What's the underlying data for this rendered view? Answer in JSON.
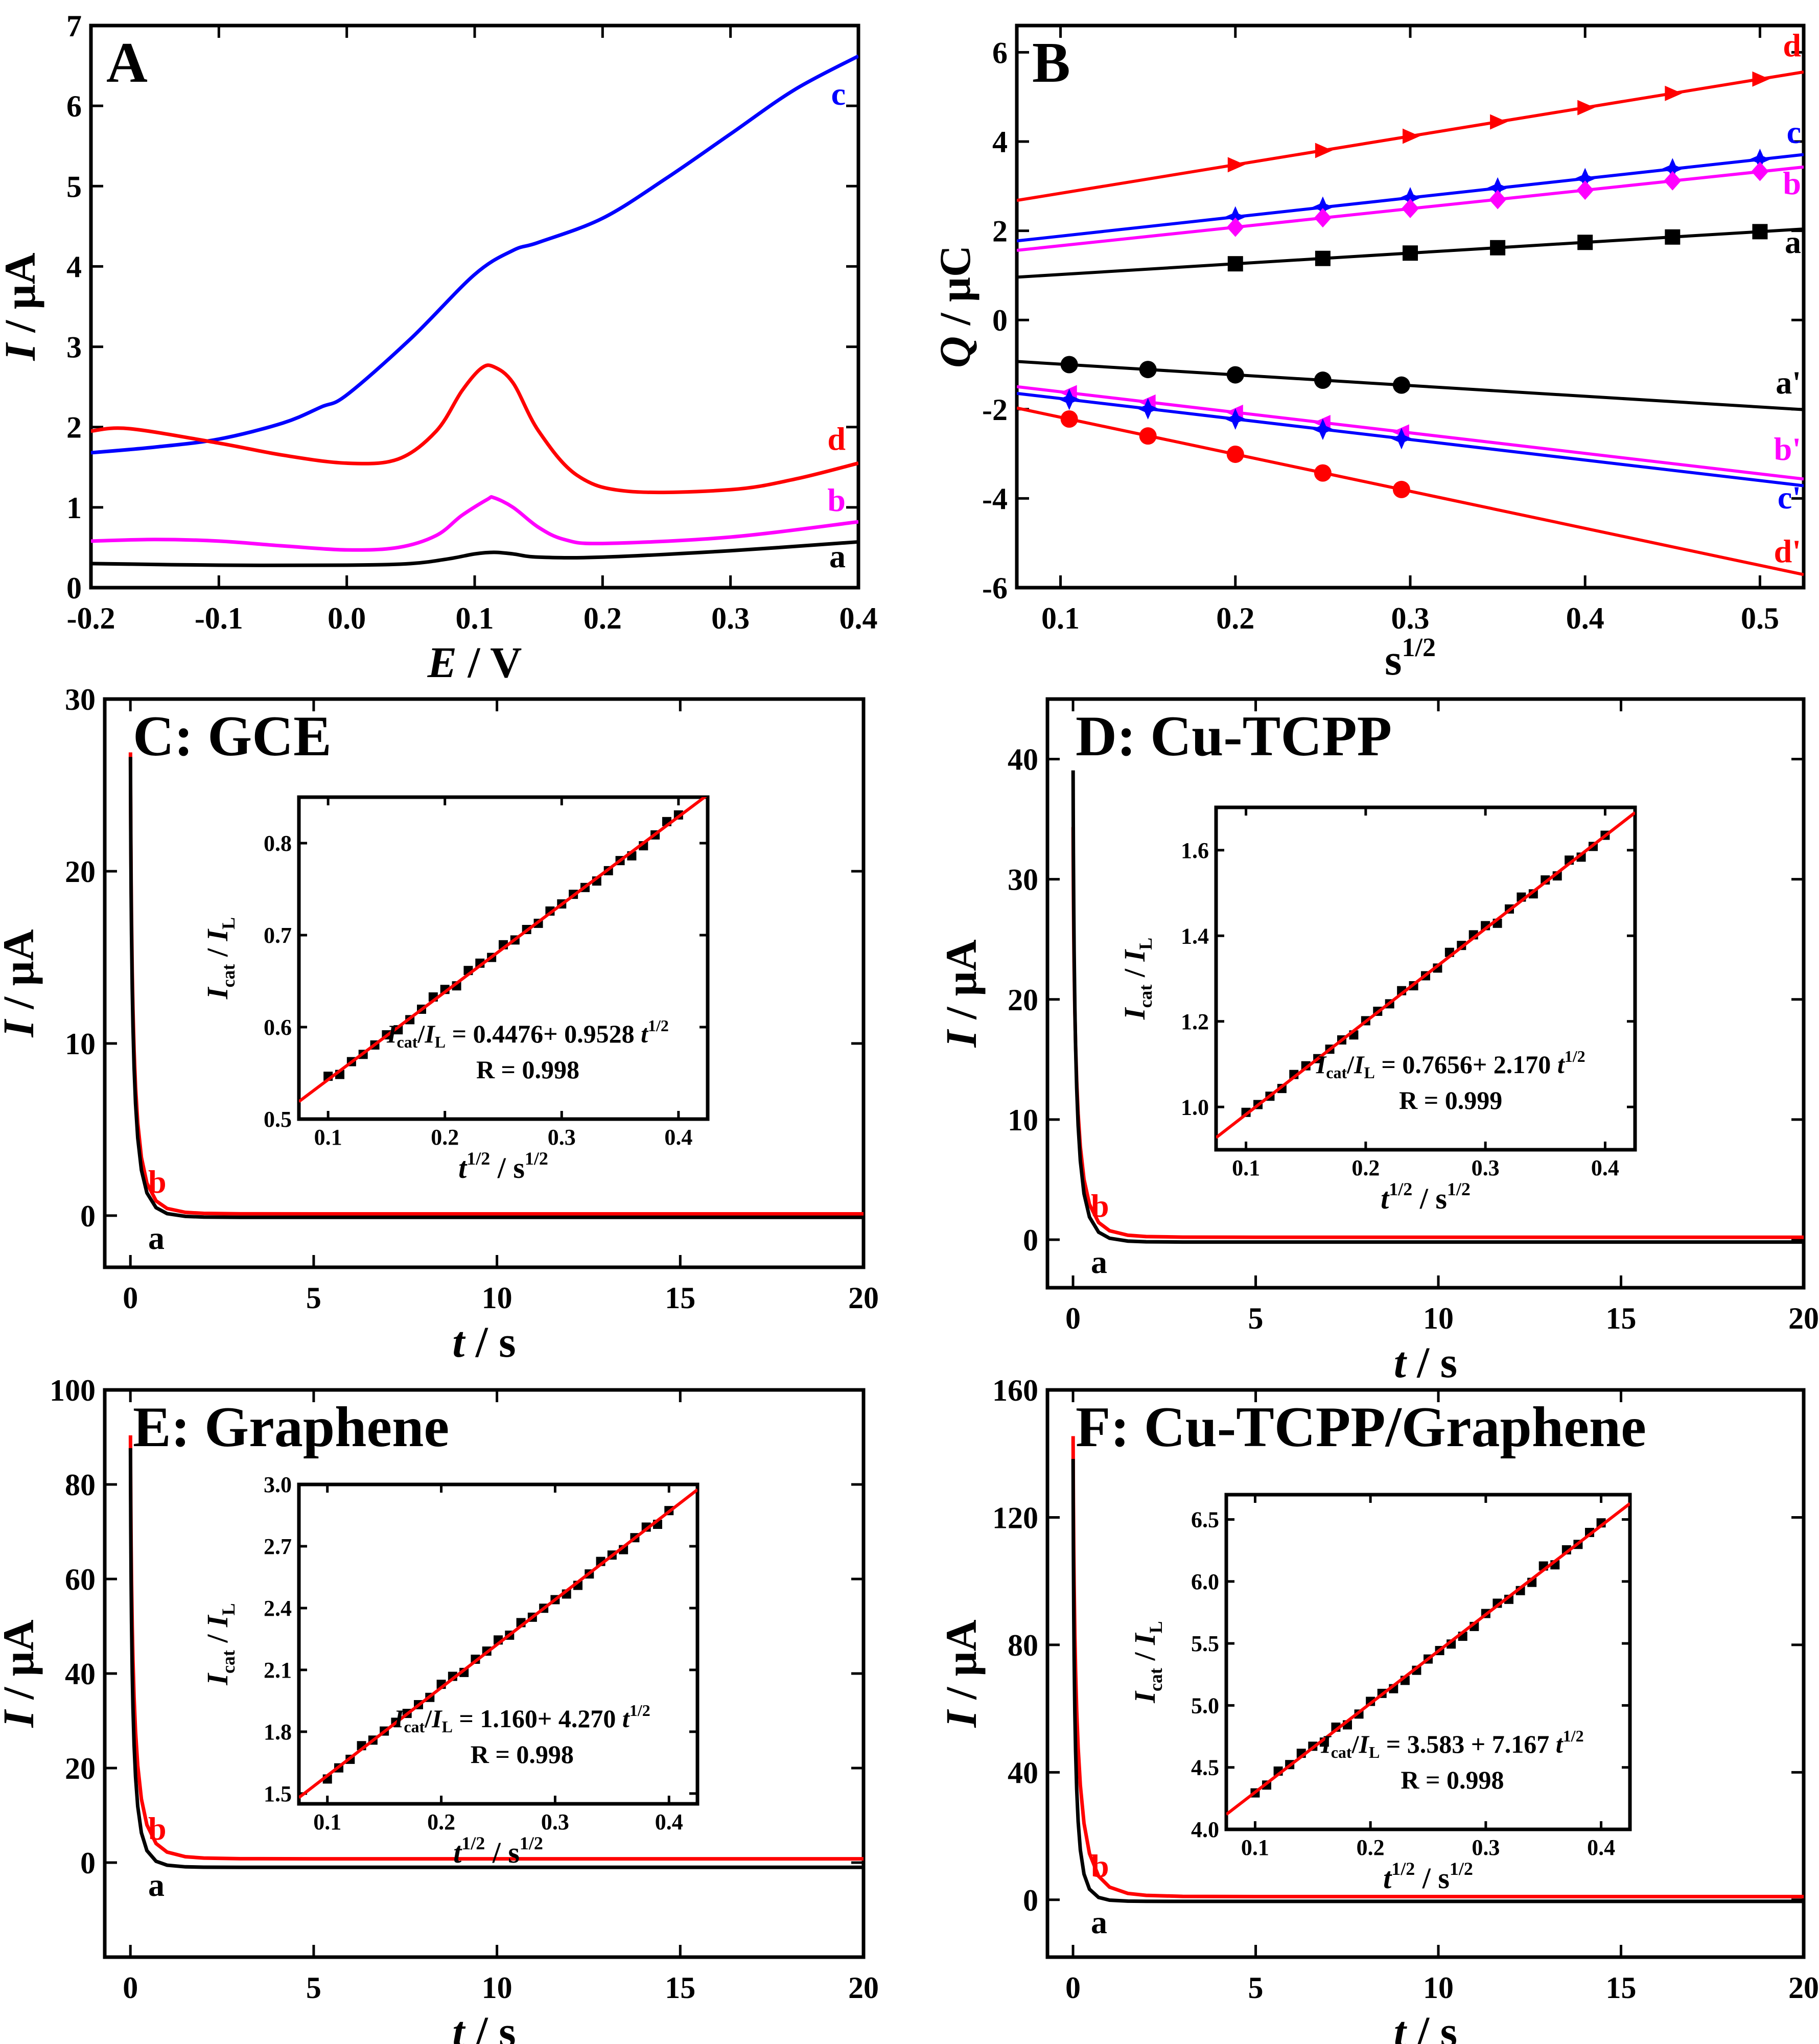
{
  "chart_data": [
    {
      "panel": "A",
      "type": "line",
      "title": "A",
      "xlabel_italic": "E",
      "xlabel_unit": " / V",
      "ylabel_italic": "I",
      "ylabel_unit": " / μA",
      "xlim": [
        -0.2,
        0.4
      ],
      "ylim": [
        0,
        7
      ],
      "xticks": [
        -0.2,
        -0.1,
        0.0,
        0.1,
        0.2,
        0.3,
        0.4
      ],
      "xtick_labels": [
        "-0.2",
        "-0.1",
        "0.0",
        "0.1",
        "0.2",
        "0.3",
        "0.4"
      ],
      "yticks": [
        0,
        1,
        2,
        3,
        4,
        5,
        6,
        7
      ],
      "ytick_labels": [
        "0",
        "1",
        "2",
        "3",
        "4",
        "5",
        "6",
        "7"
      ],
      "series": [
        {
          "name": "a",
          "color": "#000000",
          "x": [
            -0.2,
            -0.1,
            0.0,
            0.05,
            0.08,
            0.1,
            0.115,
            0.13,
            0.15,
            0.2,
            0.3,
            0.4
          ],
          "y": [
            0.3,
            0.28,
            0.28,
            0.3,
            0.36,
            0.42,
            0.44,
            0.42,
            0.38,
            0.38,
            0.46,
            0.57
          ]
        },
        {
          "name": "b",
          "color": "#ff00ff",
          "x": [
            -0.2,
            -0.15,
            -0.1,
            -0.05,
            0.0,
            0.04,
            0.07,
            0.09,
            0.11,
            0.115,
            0.13,
            0.15,
            0.17,
            0.2,
            0.3,
            0.4
          ],
          "y": [
            0.58,
            0.6,
            0.58,
            0.52,
            0.47,
            0.5,
            0.65,
            0.9,
            1.1,
            1.12,
            1.0,
            0.75,
            0.6,
            0.55,
            0.63,
            0.82
          ]
        },
        {
          "name": "c",
          "color": "#0000ff",
          "x": [
            -0.2,
            -0.15,
            -0.1,
            -0.05,
            -0.02,
            0.0,
            0.05,
            0.1,
            0.13,
            0.15,
            0.2,
            0.25,
            0.3,
            0.35,
            0.4
          ],
          "y": [
            1.68,
            1.75,
            1.85,
            2.05,
            2.25,
            2.4,
            3.1,
            3.9,
            4.2,
            4.3,
            4.6,
            5.1,
            5.65,
            6.2,
            6.62
          ]
        },
        {
          "name": "d",
          "color": "#ff0000",
          "x": [
            -0.2,
            -0.17,
            -0.1,
            -0.05,
            0.0,
            0.04,
            0.07,
            0.09,
            0.105,
            0.115,
            0.13,
            0.15,
            0.18,
            0.22,
            0.3,
            0.35,
            0.4
          ],
          "y": [
            1.95,
            1.98,
            1.8,
            1.65,
            1.55,
            1.6,
            1.95,
            2.45,
            2.73,
            2.75,
            2.55,
            1.95,
            1.4,
            1.2,
            1.22,
            1.35,
            1.55
          ]
        }
      ],
      "series_labels": [
        "c",
        "d",
        "b",
        "a"
      ]
    },
    {
      "panel": "B",
      "type": "scatter",
      "title": "B",
      "xlabel": "s",
      "xlabel_sup": "1/2",
      "ylabel_italic": "Q",
      "ylabel_unit": " / μC",
      "xlim": [
        0.075,
        0.525
      ],
      "ylim": [
        -6,
        6.6
      ],
      "xticks": [
        0.1,
        0.2,
        0.3,
        0.4,
        0.5
      ],
      "xtick_labels": [
        "0.1",
        "0.2",
        "0.3",
        "0.4",
        "0.5"
      ],
      "yticks": [
        -6,
        -4,
        -2,
        0,
        2,
        4,
        6
      ],
      "ytick_labels": [
        "-6",
        "-4",
        "-2",
        "0",
        "2",
        "4",
        "6"
      ],
      "series": [
        {
          "name": "d",
          "color": "#ff0000",
          "marker": "triangle-right",
          "slope": 6.4,
          "intercept": 2.2,
          "x": [
            0.2,
            0.25,
            0.3,
            0.35,
            0.4,
            0.45,
            0.5
          ],
          "y": [
            3.48,
            3.8,
            4.12,
            4.44,
            4.76,
            5.08,
            5.4
          ]
        },
        {
          "name": "c",
          "color": "#0000ff",
          "marker": "star",
          "slope": 4.3,
          "intercept": 1.45,
          "x": [
            0.2,
            0.25,
            0.3,
            0.35,
            0.4,
            0.45,
            0.5
          ],
          "y": [
            2.31,
            2.53,
            2.74,
            2.96,
            3.17,
            3.39,
            3.6
          ]
        },
        {
          "name": "b",
          "color": "#ff00ff",
          "marker": "diamond",
          "slope": 4.15,
          "intercept": 1.25,
          "x": [
            0.2,
            0.25,
            0.3,
            0.35,
            0.4,
            0.45,
            0.5
          ],
          "y": [
            2.08,
            2.29,
            2.5,
            2.7,
            2.91,
            3.12,
            3.33
          ]
        },
        {
          "name": "a",
          "color": "#000000",
          "marker": "square",
          "slope": 2.4,
          "intercept": 0.78,
          "x": [
            0.2,
            0.25,
            0.3,
            0.35,
            0.4,
            0.45,
            0.5
          ],
          "y": [
            1.26,
            1.38,
            1.5,
            1.62,
            1.74,
            1.86,
            1.98
          ]
        },
        {
          "name": "a'",
          "color": "#000000",
          "marker": "circle",
          "slope": -2.4,
          "intercept": -0.75,
          "x": [
            0.105,
            0.15,
            0.2,
            0.25,
            0.295
          ],
          "y": [
            -1.0,
            -1.11,
            -1.23,
            -1.35,
            -1.46
          ]
        },
        {
          "name": "b'",
          "color": "#ff00ff",
          "marker": "triangle-left",
          "slope": -4.6,
          "intercept": -1.15,
          "x": [
            0.105,
            0.15,
            0.2,
            0.25,
            0.295
          ],
          "y": [
            -1.63,
            -1.84,
            -2.07,
            -2.3,
            -2.51
          ]
        },
        {
          "name": "c'",
          "color": "#0000ff",
          "marker": "star",
          "slope": -4.6,
          "intercept": -1.3,
          "x": [
            0.105,
            0.15,
            0.2,
            0.25,
            0.295
          ],
          "y": [
            -1.78,
            -1.99,
            -2.22,
            -2.45,
            -2.66
          ]
        },
        {
          "name": "d'",
          "color": "#ff0000",
          "marker": "circle",
          "slope": -8.3,
          "intercept": -1.35,
          "x": [
            0.105,
            0.15,
            0.2,
            0.25,
            0.295
          ],
          "y": [
            -2.22,
            -2.6,
            -3.01,
            -3.43,
            -3.8
          ]
        }
      ],
      "series_labels": [
        "d",
        "c",
        "b",
        "a",
        "a'",
        "b'",
        "c'",
        "d'"
      ]
    },
    {
      "panel": "C",
      "type": "line",
      "title": "C: GCE",
      "xlabel_italic": "t",
      "xlabel_unit": " / s",
      "ylabel_italic": "I",
      "ylabel_unit": " / μA",
      "xlim": [
        -0.7,
        20
      ],
      "ylim": [
        -3,
        30
      ],
      "xticks": [
        0,
        5,
        10,
        15,
        20
      ],
      "xtick_labels": [
        "0",
        "5",
        "10",
        "15",
        "20"
      ],
      "yticks": [
        0,
        10,
        20,
        30
      ],
      "ytick_labels": [
        "0",
        "10",
        "20",
        "30"
      ],
      "series": [
        {
          "name": "b",
          "color": "#ff0000",
          "peak": 30,
          "base": 0.1,
          "tau": 0.08
        },
        {
          "name": "a",
          "color": "#000000",
          "peak": 30,
          "base": -0.1,
          "tau": 0.07
        }
      ],
      "series_labels": [
        "b",
        "a"
      ],
      "inset": {
        "xlabel": "t",
        "xlabel_sup": "1/2",
        "xlabel_unit": " / s",
        "xlabel_unit_sup": "1/2",
        "ylabel_main": "I",
        "ylabel_sub": "cat",
        "ylabel_sep": " / ",
        "ylabel_main2": "I",
        "ylabel_sub2": "L",
        "xlim": [
          0.075,
          0.425
        ],
        "ylim": [
          0.5,
          0.85
        ],
        "xticks": [
          0.1,
          0.2,
          0.3,
          0.4
        ],
        "xtick_labels": [
          "0.1",
          "0.2",
          "0.3",
          "0.4"
        ],
        "yticks": [
          0.5,
          0.6,
          0.7,
          0.8
        ],
        "ytick_labels": [
          "0.5",
          "0.6",
          "0.7",
          "0.8"
        ],
        "intercept": 0.4476,
        "slope": 0.9528,
        "equation_rest": "= 0.4476+ 0.9528 ",
        "r_text": "R = 0.998",
        "x_start": 0.1,
        "x_end": 0.4,
        "n_points": 31
      }
    },
    {
      "panel": "D",
      "type": "line",
      "title": "D: Cu-TCPP",
      "xlabel_italic": "t",
      "xlabel_unit": " / s",
      "ylabel_italic": "I",
      "ylabel_unit": " / μA",
      "xlim": [
        -0.7,
        20
      ],
      "ylim": [
        -4,
        45
      ],
      "xticks": [
        0,
        5,
        10,
        15,
        20
      ],
      "xtick_labels": [
        "0",
        "5",
        "10",
        "15",
        "20"
      ],
      "yticks": [
        0,
        10,
        20,
        30,
        40
      ],
      "ytick_labels": [
        "0",
        "10",
        "20",
        "30",
        "40"
      ],
      "series": [
        {
          "name": "b",
          "color": "#ff0000",
          "peak": 38,
          "base": 0.2,
          "tau": 0.09
        },
        {
          "name": "a",
          "color": "#000000",
          "peak": 44,
          "base": -0.2,
          "tau": 0.07
        }
      ],
      "series_labels": [
        "b",
        "a"
      ],
      "inset": {
        "xlabel": "t",
        "xlabel_sup": "1/2",
        "xlabel_unit": " / s",
        "xlabel_unit_sup": "1/2",
        "ylabel_main": "I",
        "ylabel_sub": "cat",
        "ylabel_sep": " / ",
        "ylabel_main2": "I",
        "ylabel_sub2": "L",
        "xlim": [
          0.075,
          0.425
        ],
        "ylim": [
          0.9,
          1.7
        ],
        "xticks": [
          0.1,
          0.2,
          0.3,
          0.4
        ],
        "xtick_labels": [
          "0.1",
          "0.2",
          "0.3",
          "0.4"
        ],
        "yticks": [
          1.0,
          1.2,
          1.4,
          1.6
        ],
        "ytick_labels": [
          "1.0",
          "1.2",
          "1.4",
          "1.6"
        ],
        "intercept": 0.7656,
        "slope": 2.17,
        "equation_rest": "= 0.7656+ 2.170 ",
        "r_text": "R = 0.999",
        "x_start": 0.1,
        "x_end": 0.4,
        "n_points": 31
      }
    },
    {
      "panel": "E",
      "type": "line",
      "title": "E: Graphene",
      "xlabel_italic": "t",
      "xlabel_unit": " / s",
      "ylabel_italic": "I",
      "ylabel_unit": " / μA",
      "xlim": [
        -0.7,
        20
      ],
      "ylim": [
        -20,
        100
      ],
      "xticks": [
        0,
        5,
        10,
        15,
        20
      ],
      "xtick_labels": [
        "0",
        "5",
        "10",
        "15",
        "20"
      ],
      "yticks": [
        0,
        20,
        40,
        60,
        80,
        100
      ],
      "ytick_labels": [
        "0",
        "20",
        "40",
        "60",
        "80",
        "100"
      ],
      "series": [
        {
          "name": "b",
          "color": "#ff0000",
          "peak": 100,
          "base": 0.8,
          "tau": 0.09
        },
        {
          "name": "a",
          "color": "#000000",
          "peak": 100,
          "base": -1.0,
          "tau": 0.06
        }
      ],
      "series_labels": [
        "b",
        "a"
      ],
      "inset": {
        "xlabel": "t",
        "xlabel_sup": "1/2",
        "xlabel_unit": " / s",
        "xlabel_unit_sup": "1/2",
        "ylabel_main": "I",
        "ylabel_sub": "cat",
        "ylabel_sep": " / ",
        "ylabel_main2": "I",
        "ylabel_sub2": "L",
        "xlim": [
          0.075,
          0.425
        ],
        "ylim": [
          1.45,
          3.0
        ],
        "xticks": [
          0.1,
          0.2,
          0.3,
          0.4
        ],
        "xtick_labels": [
          "0.1",
          "0.2",
          "0.3",
          "0.4"
        ],
        "yticks": [
          1.5,
          1.8,
          2.1,
          2.4,
          2.7,
          3.0
        ],
        "ytick_labels": [
          "1.5",
          "1.8",
          "2.1",
          "2.4",
          "2.7",
          "3.0"
        ],
        "intercept": 1.16,
        "slope": 4.27,
        "equation_rest": "= 1.160+ 4.270 ",
        "r_text": "R = 0.998",
        "x_start": 0.1,
        "x_end": 0.4,
        "n_points": 31
      }
    },
    {
      "panel": "F",
      "type": "line",
      "title": "F: Cu-TCPP/Graphene",
      "xlabel_italic": "t",
      "xlabel_unit": " / s",
      "ylabel_italic": "I",
      "ylabel_unit": " / μA",
      "xlim": [
        -0.7,
        20
      ],
      "ylim": [
        -18,
        160
      ],
      "xticks": [
        0,
        5,
        10,
        15,
        20
      ],
      "xtick_labels": [
        "0",
        "5",
        "10",
        "15",
        "20"
      ],
      "yticks": [
        0,
        40,
        80,
        120,
        160
      ],
      "ytick_labels": [
        "0",
        "40",
        "80",
        "120",
        "160"
      ],
      "series": [
        {
          "name": "b",
          "color": "#ff0000",
          "peak": 160,
          "base": 1.0,
          "tau": 0.1
        },
        {
          "name": "a",
          "color": "#000000",
          "peak": 160,
          "base": -0.5,
          "tau": 0.05
        }
      ],
      "series_labels": [
        "b",
        "a"
      ],
      "inset": {
        "xlabel": "t",
        "xlabel_sup": "1/2",
        "xlabel_unit": " / s",
        "xlabel_unit_sup": "1/2",
        "ylabel_main": "I",
        "ylabel_sub": "cat",
        "ylabel_sep": " / ",
        "ylabel_main2": "I",
        "ylabel_sub2": "L",
        "xlim": [
          0.075,
          0.425
        ],
        "ylim": [
          4.0,
          6.7
        ],
        "xticks": [
          0.1,
          0.2,
          0.3,
          0.4
        ],
        "xtick_labels": [
          "0.1",
          "0.2",
          "0.3",
          "0.4"
        ],
        "yticks": [
          4.0,
          4.5,
          5.0,
          5.5,
          6.0,
          6.5
        ],
        "ytick_labels": [
          "4.0",
          "4.5",
          "5.0",
          "5.5",
          "6.0",
          "6.5"
        ],
        "intercept": 3.583,
        "slope": 7.167,
        "equation_rest": "= 3.583 + 7.167 ",
        "r_text": "R = 0.998",
        "x_start": 0.1,
        "x_end": 0.4,
        "n_points": 31
      }
    }
  ]
}
